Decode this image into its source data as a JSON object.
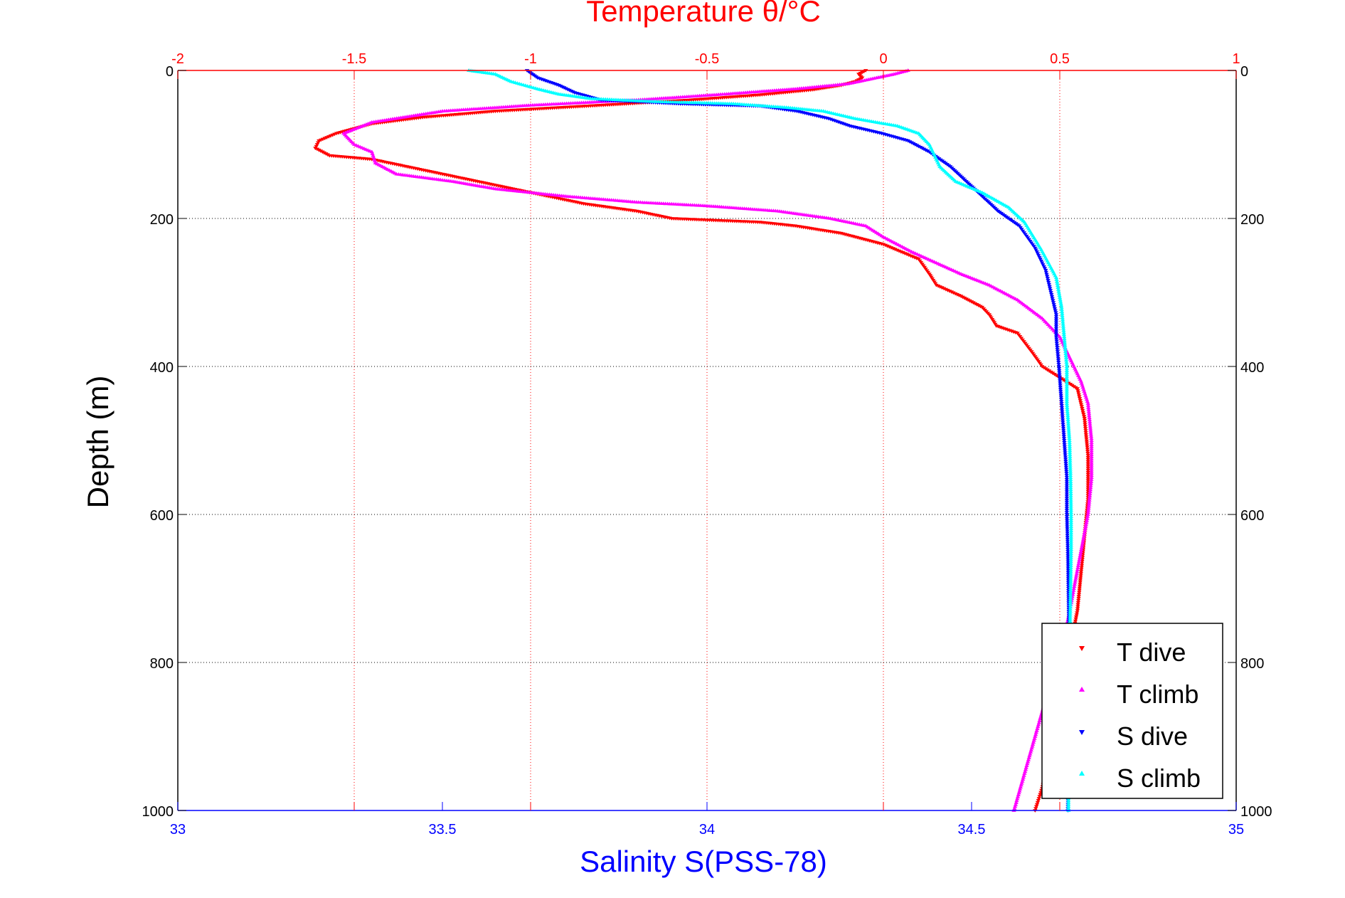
{
  "chart_data": {
    "type": "scatter",
    "title": "",
    "ylabel": "Depth (m)",
    "xlabel_bottom": "Salinity S(PSS-78)",
    "xlabel_top": "Temperature θ/°C",
    "ylim": [
      0,
      1000
    ],
    "y_reversed": true,
    "y_ticks": [
      0,
      200,
      400,
      600,
      800,
      1000
    ],
    "x_bottom": {
      "label": "Salinity S(PSS-78)",
      "lim": [
        33,
        35
      ],
      "ticks": [
        "33",
        "33.5",
        "34",
        "34.5",
        "35"
      ],
      "tick_values": [
        33,
        33.5,
        34,
        34.5,
        35
      ],
      "grid": false
    },
    "x_top": {
      "label": "Temperature θ/°C",
      "lim": [
        -2,
        1
      ],
      "ticks": [
        "-2",
        "-1.5",
        "-1",
        "-0.5",
        "0",
        "0.5",
        "1"
      ],
      "tick_values": [
        -2,
        -1.5,
        -1,
        -0.5,
        0,
        0.5,
        1
      ],
      "grid": true
    },
    "y_grid": true,
    "legend_position": "bottom-right",
    "colors": {
      "T dive": "#ff0000",
      "T climb": "#ff00ff",
      "S dive": "#0000ff",
      "S climb": "#00ffff",
      "top_axis": "#ff0000",
      "bottom_axis": "#0000ff",
      "frame": "#000000"
    },
    "series": [
      {
        "name": "T dive",
        "axis": "temperature",
        "marker": "triangle-down",
        "points": [
          [
            -0.05,
            0
          ],
          [
            -0.07,
            5
          ],
          [
            -0.06,
            10
          ],
          [
            -0.08,
            15
          ],
          [
            -0.12,
            20
          ],
          [
            -0.2,
            26
          ],
          [
            -0.35,
            33
          ],
          [
            -0.55,
            40
          ],
          [
            -0.8,
            47
          ],
          [
            -1.1,
            55
          ],
          [
            -1.3,
            63
          ],
          [
            -1.45,
            72
          ],
          [
            -1.55,
            85
          ],
          [
            -1.6,
            95
          ],
          [
            -1.61,
            105
          ],
          [
            -1.57,
            115
          ],
          [
            -1.45,
            120
          ],
          [
            -1.35,
            130
          ],
          [
            -1.25,
            140
          ],
          [
            -1.15,
            150
          ],
          [
            -1.05,
            160
          ],
          [
            -0.95,
            170
          ],
          [
            -0.85,
            180
          ],
          [
            -0.7,
            190
          ],
          [
            -0.6,
            200
          ],
          [
            -0.35,
            205
          ],
          [
            -0.25,
            210
          ],
          [
            -0.12,
            220
          ],
          [
            0,
            235
          ],
          [
            0.05,
            245
          ],
          [
            0.1,
            255
          ],
          [
            0.13,
            275
          ],
          [
            0.15,
            290
          ],
          [
            0.22,
            305
          ],
          [
            0.28,
            320
          ],
          [
            0.3,
            330
          ],
          [
            0.32,
            345
          ],
          [
            0.38,
            355
          ],
          [
            0.42,
            380
          ],
          [
            0.45,
            400
          ],
          [
            0.5,
            415
          ],
          [
            0.55,
            430
          ],
          [
            0.57,
            470
          ],
          [
            0.58,
            520
          ],
          [
            0.58,
            580
          ],
          [
            0.57,
            630
          ],
          [
            0.56,
            680
          ],
          [
            0.55,
            730
          ],
          [
            0.53,
            780
          ],
          [
            0.51,
            830
          ],
          [
            0.49,
            880
          ],
          [
            0.47,
            930
          ],
          [
            0.45,
            970
          ],
          [
            0.43,
            1000
          ]
        ]
      },
      {
        "name": "T climb",
        "axis": "temperature",
        "marker": "triangle-up",
        "points": [
          [
            0.07,
            0
          ],
          [
            0.03,
            5
          ],
          [
            -0.02,
            10
          ],
          [
            -0.1,
            18
          ],
          [
            -0.25,
            25
          ],
          [
            -0.45,
            32
          ],
          [
            -0.7,
            40
          ],
          [
            -1.0,
            47
          ],
          [
            -1.25,
            55
          ],
          [
            -1.45,
            70
          ],
          [
            -1.53,
            85
          ],
          [
            -1.5,
            100
          ],
          [
            -1.45,
            110
          ],
          [
            -1.44,
            125
          ],
          [
            -1.38,
            140
          ],
          [
            -1.22,
            150
          ],
          [
            -1.1,
            160
          ],
          [
            -0.9,
            170
          ],
          [
            -0.7,
            178
          ],
          [
            -0.5,
            183
          ],
          [
            -0.3,
            190
          ],
          [
            -0.15,
            200
          ],
          [
            -0.05,
            210
          ],
          [
            0,
            225
          ],
          [
            0.08,
            245
          ],
          [
            0.15,
            260
          ],
          [
            0.22,
            275
          ],
          [
            0.3,
            290
          ],
          [
            0.38,
            310
          ],
          [
            0.45,
            335
          ],
          [
            0.5,
            360
          ],
          [
            0.53,
            390
          ],
          [
            0.56,
            420
          ],
          [
            0.58,
            450
          ],
          [
            0.59,
            500
          ],
          [
            0.59,
            550
          ],
          [
            0.58,
            600
          ],
          [
            0.56,
            650
          ],
          [
            0.54,
            700
          ],
          [
            0.52,
            750
          ],
          [
            0.49,
            800
          ],
          [
            0.46,
            850
          ],
          [
            0.43,
            900
          ],
          [
            0.4,
            950
          ],
          [
            0.37,
            1000
          ]
        ]
      },
      {
        "name": "S dive",
        "axis": "salinity",
        "marker": "triangle-down",
        "points": [
          [
            33.66,
            0
          ],
          [
            33.68,
            10
          ],
          [
            33.72,
            20
          ],
          [
            33.75,
            30
          ],
          [
            33.8,
            40
          ],
          [
            33.95,
            45
          ],
          [
            34.1,
            48
          ],
          [
            34.17,
            55
          ],
          [
            34.23,
            65
          ],
          [
            34.27,
            75
          ],
          [
            34.33,
            85
          ],
          [
            34.38,
            95
          ],
          [
            34.42,
            110
          ],
          [
            34.46,
            130
          ],
          [
            34.49,
            150
          ],
          [
            34.52,
            170
          ],
          [
            34.55,
            190
          ],
          [
            34.59,
            210
          ],
          [
            34.62,
            240
          ],
          [
            34.64,
            270
          ],
          [
            34.65,
            300
          ],
          [
            34.66,
            330
          ],
          [
            34.66,
            360
          ],
          [
            34.665,
            400
          ],
          [
            34.67,
            450
          ],
          [
            34.675,
            500
          ],
          [
            34.68,
            550
          ],
          [
            34.68,
            600
          ],
          [
            34.682,
            650
          ],
          [
            34.683,
            700
          ],
          [
            34.684,
            750
          ],
          [
            34.685,
            800
          ],
          [
            34.684,
            850
          ],
          [
            34.683,
            900
          ],
          [
            34.683,
            950
          ],
          [
            34.682,
            1000
          ]
        ]
      },
      {
        "name": "S climb",
        "axis": "salinity",
        "marker": "triangle-up",
        "points": [
          [
            33.55,
            0
          ],
          [
            33.6,
            5
          ],
          [
            33.63,
            15
          ],
          [
            33.68,
            25
          ],
          [
            33.72,
            32
          ],
          [
            33.78,
            38
          ],
          [
            33.9,
            42
          ],
          [
            34.05,
            45
          ],
          [
            34.15,
            50
          ],
          [
            34.22,
            55
          ],
          [
            34.28,
            65
          ],
          [
            34.36,
            75
          ],
          [
            34.4,
            85
          ],
          [
            34.42,
            100
          ],
          [
            34.44,
            130
          ],
          [
            34.47,
            150
          ],
          [
            34.52,
            165
          ],
          [
            34.57,
            185
          ],
          [
            34.6,
            205
          ],
          [
            34.63,
            240
          ],
          [
            34.66,
            280
          ],
          [
            34.67,
            320
          ],
          [
            34.675,
            360
          ],
          [
            34.68,
            400
          ],
          [
            34.68,
            450
          ],
          [
            34.685,
            500
          ],
          [
            34.687,
            550
          ],
          [
            34.688,
            600
          ],
          [
            34.688,
            650
          ],
          [
            34.687,
            700
          ],
          [
            34.686,
            750
          ],
          [
            34.685,
            800
          ],
          [
            34.684,
            850
          ],
          [
            34.683,
            900
          ],
          [
            34.683,
            950
          ],
          [
            34.683,
            1000
          ]
        ]
      }
    ]
  }
}
